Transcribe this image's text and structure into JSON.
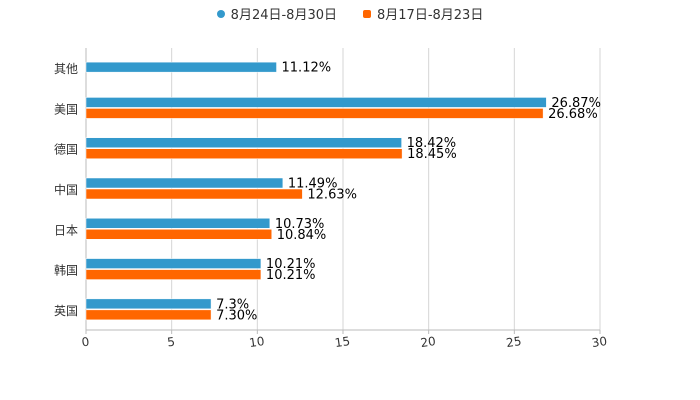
{
  "chart_data": {
    "type": "bar",
    "orientation": "horizontal",
    "categories": [
      "其他",
      "美国",
      "德国",
      "中国",
      "日本",
      "韩国",
      "英国"
    ],
    "series": [
      {
        "name": "8月24日-8月30日",
        "color": "#3399cc",
        "values": [
          11.12,
          26.87,
          18.42,
          11.49,
          10.73,
          10.21,
          7.3
        ],
        "labels": [
          "11.12%",
          "26.87%",
          "18.42%",
          "11.49%",
          "10.73%",
          "10.21%",
          "7.3%"
        ]
      },
      {
        "name": "8月17日-8月23日",
        "color": "#ff6600",
        "values": [
          null,
          26.68,
          18.45,
          12.63,
          10.84,
          10.21,
          7.3
        ],
        "labels": [
          null,
          "26.68%",
          "18.45%",
          "12.63%",
          "10.84%",
          "10.21%",
          "7.30%"
        ]
      }
    ],
    "xlim": [
      0,
      30
    ],
    "xticks": [
      "0",
      "5",
      "10",
      "15",
      "20",
      "25",
      "30"
    ],
    "grid": true,
    "legend_position": "top-center"
  }
}
